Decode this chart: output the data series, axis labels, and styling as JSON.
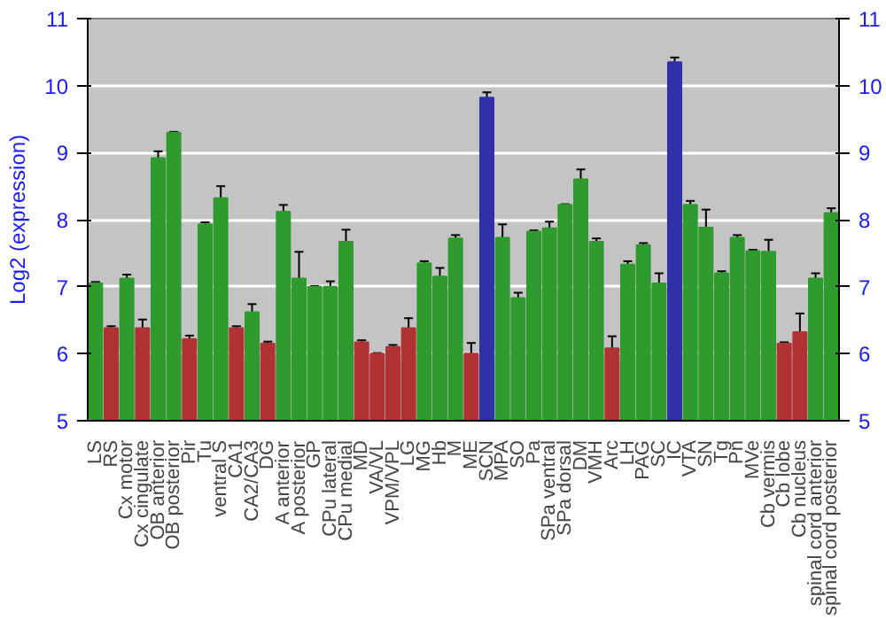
{
  "chart_data": {
    "type": "bar",
    "ylabel": "Log2 (expression)",
    "categories": [
      "LS",
      "RS",
      "Cx motor",
      "Cx cingulate",
      "OB anterior",
      "OB posterior",
      "Pir",
      "Tu",
      "ventral S",
      "CA1",
      "CA2/CA3",
      "DG",
      "A anterior",
      "A posterior",
      "GP",
      "CPu lateral",
      "CPu medial",
      "MD",
      "VA/VL",
      "VPM/VPL",
      "LG",
      "MG",
      "Hb",
      "M",
      "ME",
      "SCN",
      "MPA",
      "SO",
      "Pa",
      "SPa ventral",
      "SPa dorsal",
      "DM",
      "VMH",
      "Arc",
      "LH",
      "PAG",
      "SC",
      "IC",
      "VTA",
      "SN",
      "Tg",
      "Pn",
      "MVe",
      "Cb vermis",
      "Cb lobe",
      "Cb nucleus",
      "spinal cord anterior",
      "spinal cord posterior"
    ],
    "values": [
      7.05,
      6.38,
      7.12,
      6.38,
      8.92,
      9.3,
      6.22,
      7.93,
      8.32,
      6.38,
      6.62,
      6.15,
      8.12,
      7.12,
      7.0,
      7.0,
      7.67,
      6.17,
      6.0,
      6.1,
      6.38,
      7.35,
      7.15,
      7.72,
      6.0,
      9.82,
      7.73,
      6.83,
      7.82,
      7.87,
      8.22,
      8.6,
      7.67,
      6.08,
      7.33,
      7.62,
      7.05,
      10.35,
      8.22,
      7.88,
      7.2,
      7.73,
      7.53,
      7.52,
      6.15,
      6.32,
      7.12,
      8.1
    ],
    "errors": [
      0.02,
      0.03,
      0.06,
      0.13,
      0.1,
      0.01,
      0.05,
      0.03,
      0.18,
      0.03,
      0.12,
      0.03,
      0.1,
      0.4,
      0.01,
      0.08,
      0.18,
      0.03,
      0.01,
      0.03,
      0.15,
      0.03,
      0.13,
      0.05,
      0.16,
      0.08,
      0.2,
      0.08,
      0.02,
      0.1,
      0.01,
      0.15,
      0.05,
      0.18,
      0.05,
      0.03,
      0.15,
      0.07,
      0.06,
      0.27,
      0.03,
      0.04,
      0.02,
      0.18,
      0.02,
      0.28,
      0.08,
      0.07
    ],
    "colors": [
      "#2f9b2f",
      "#b03232",
      "#2f9b2f",
      "#b03232",
      "#2f9b2f",
      "#2f9b2f",
      "#b03232",
      "#2f9b2f",
      "#2f9b2f",
      "#b03232",
      "#2f9b2f",
      "#b03232",
      "#2f9b2f",
      "#2f9b2f",
      "#2f9b2f",
      "#2f9b2f",
      "#2f9b2f",
      "#b03232",
      "#b03232",
      "#b03232",
      "#b03232",
      "#2f9b2f",
      "#2f9b2f",
      "#2f9b2f",
      "#b03232",
      "#3030a8",
      "#2f9b2f",
      "#2f9b2f",
      "#2f9b2f",
      "#2f9b2f",
      "#2f9b2f",
      "#2f9b2f",
      "#2f9b2f",
      "#b03232",
      "#2f9b2f",
      "#2f9b2f",
      "#2f9b2f",
      "#3030a8",
      "#2f9b2f",
      "#2f9b2f",
      "#2f9b2f",
      "#2f9b2f",
      "#2f9b2f",
      "#2f9b2f",
      "#b03232",
      "#b03232",
      "#2f9b2f",
      "#2f9b2f"
    ],
    "ylim": [
      5,
      11
    ],
    "yticks": [
      5,
      6,
      7,
      8,
      9,
      10,
      11
    ],
    "y2lim": [
      5,
      11
    ],
    "y2ticks": [
      5,
      6,
      7,
      8,
      9,
      10,
      11
    ],
    "grid": "y"
  }
}
